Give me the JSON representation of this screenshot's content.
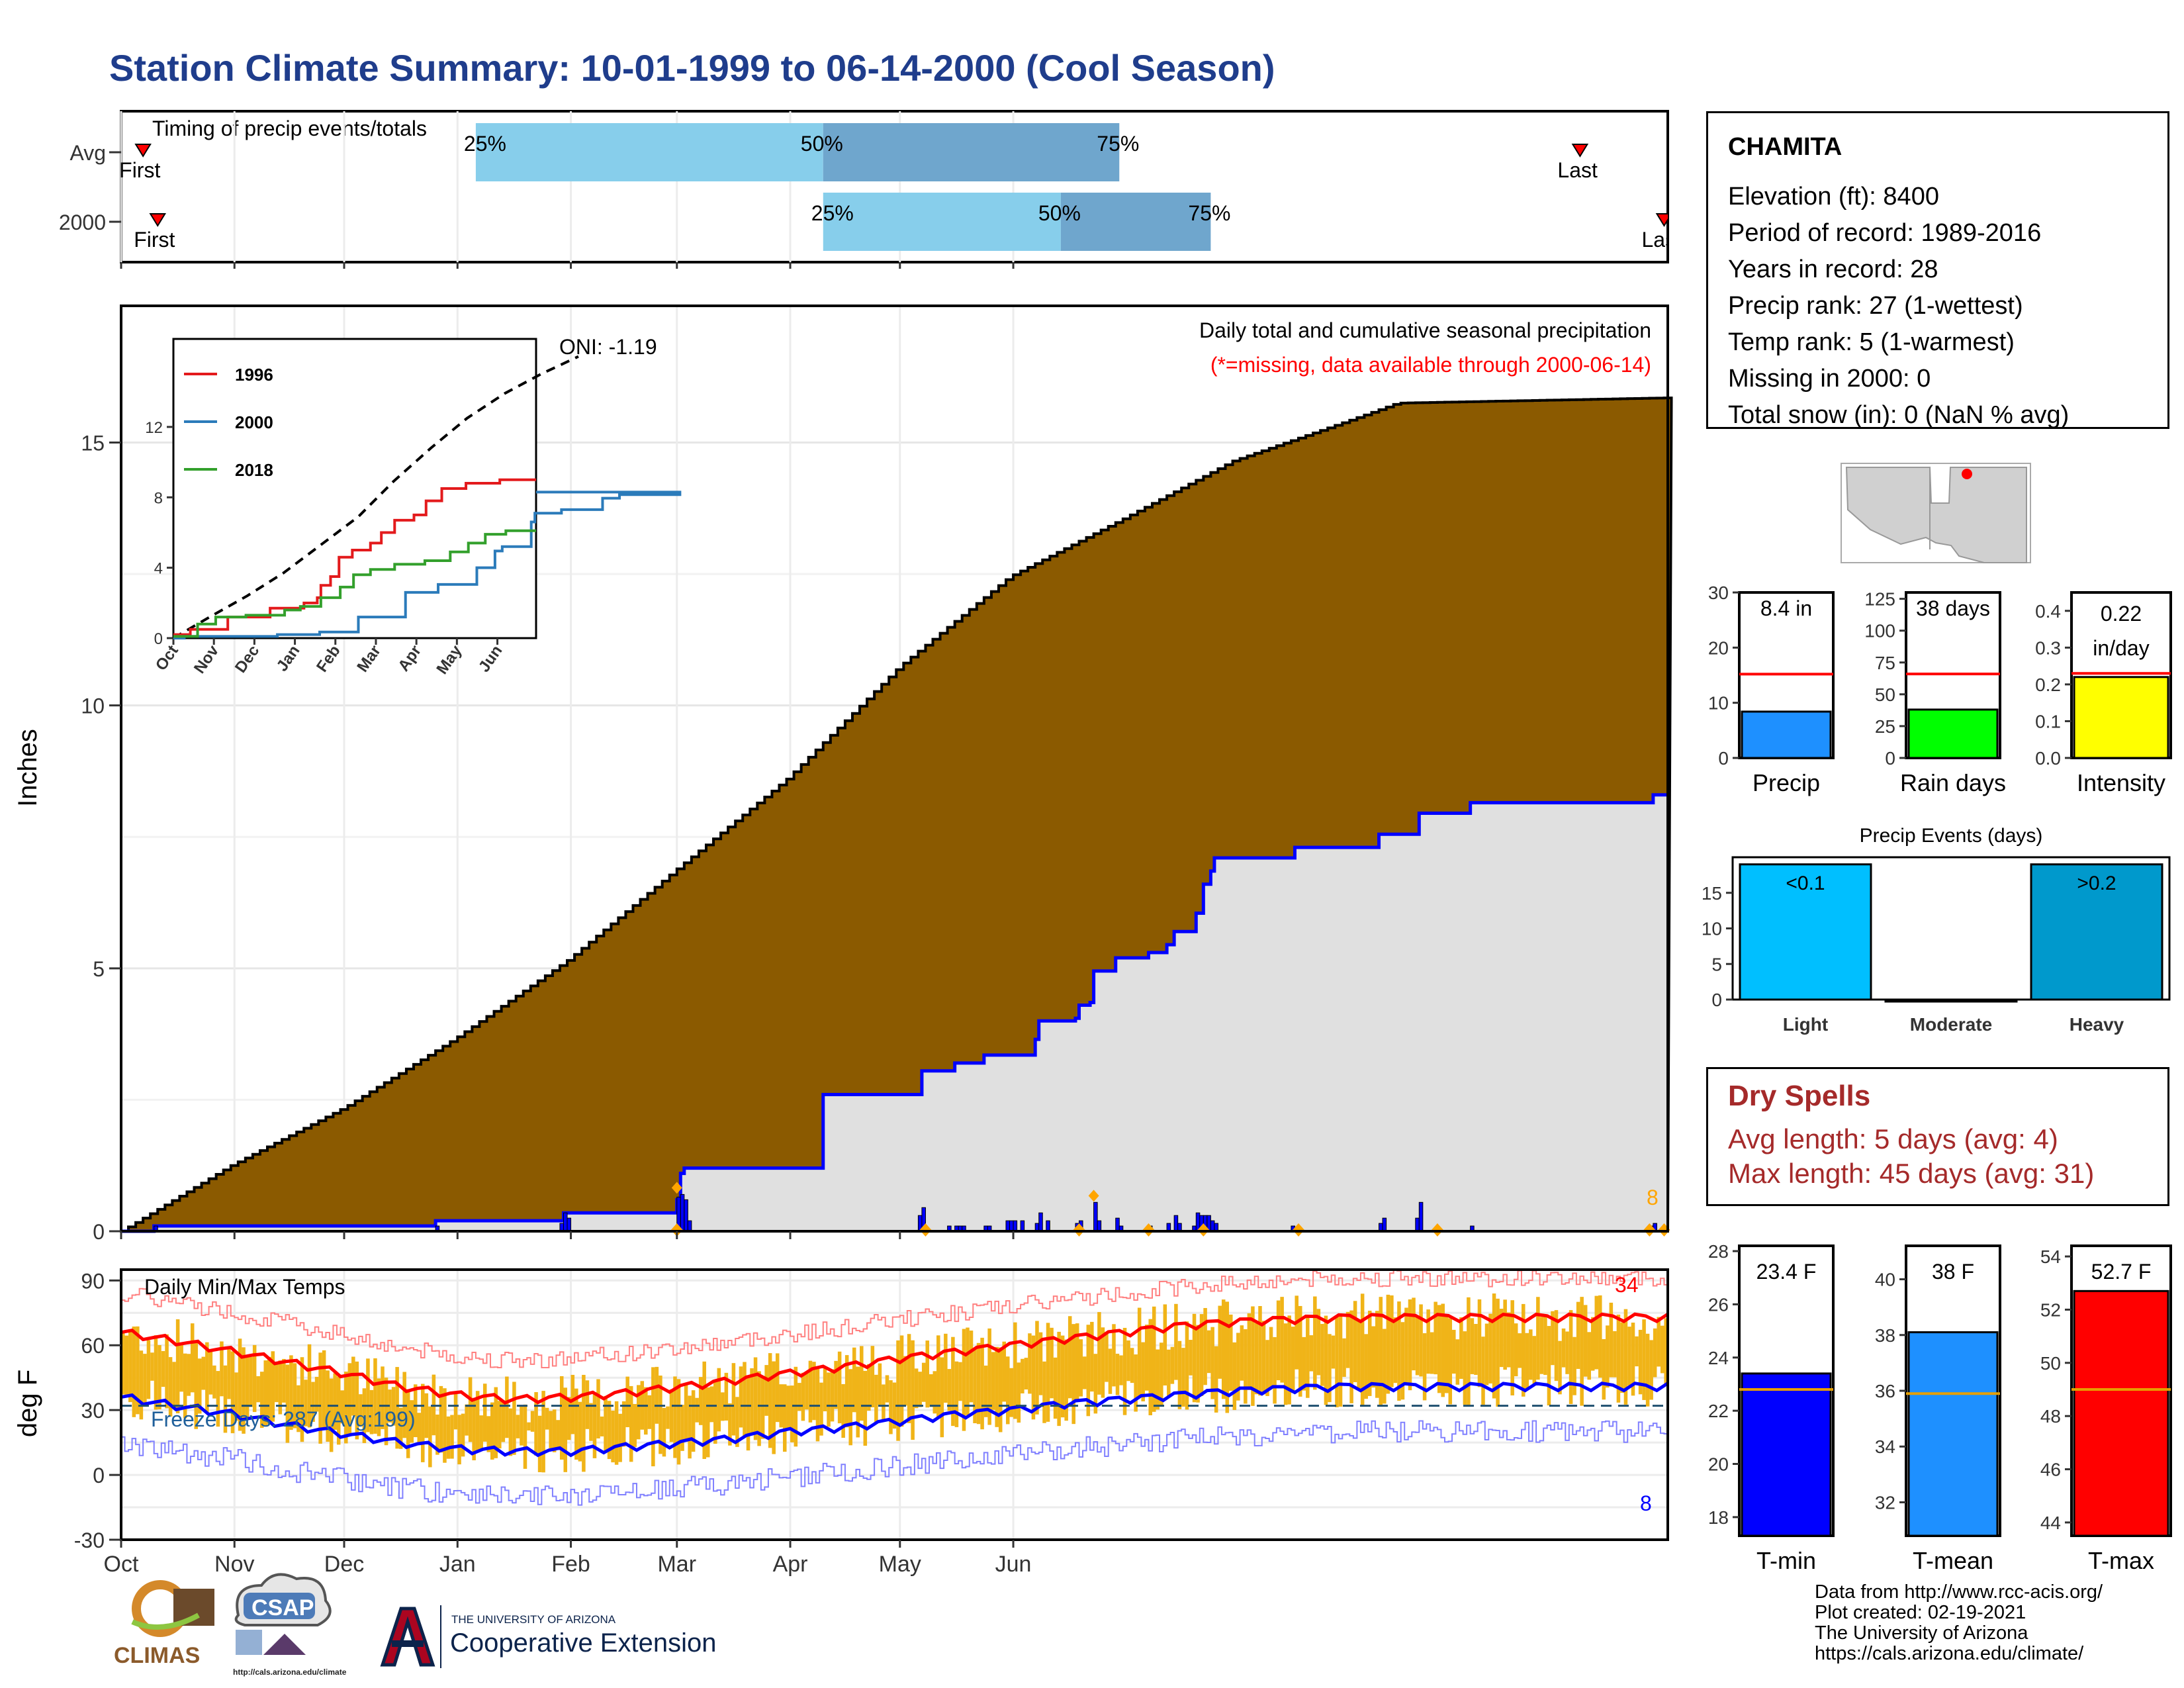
{
  "title": "Station Climate Summary: 10-01-1999 to 06-14-2000 (Cool Season)",
  "colors": {
    "title": "#1f3d8c",
    "avg_cumulative": "#8b5a00",
    "season_cumulative_fill": "#e0e0e0",
    "season_cumulative_line": "#0000ff",
    "daily_precip": "#0000ff",
    "event_marker": "#ffa500",
    "temp_bar": "#f0b418",
    "tmax_mean": "#ff0000",
    "tmin_mean": "#0000ff",
    "light_blue": "#87ceeb",
    "steel_blue": "#6fa6cd",
    "dry_spell_text": "#a52a2a"
  },
  "timing_chart": {
    "label": "Timing of precip events/totals",
    "rows": [
      {
        "name": "Avg",
        "first_label": "First",
        "last_label": "Last",
        "q25_label": "25%",
        "q50_label": "50%",
        "q75_label": "75%",
        "first_day": 6,
        "q25_day": 97,
        "q50_day": 192,
        "q75_day": 273,
        "last_day": 399
      },
      {
        "name": "2000",
        "first_label": "First",
        "last_label": "Last",
        "q25_label": "25%",
        "q50_label": "50%",
        "q75_label": "75%",
        "first_day": 10,
        "q25_day": 192,
        "q50_day": 257,
        "q75_day": 298,
        "last_day": 422
      }
    ]
  },
  "main_chart": {
    "ylabel": "Inches",
    "title": "Daily total and cumulative seasonal precipitation",
    "subtitle": "(*=missing, data available through 2000-06-14)",
    "oni_label": "ONI: -1.19",
    "end_count_label": "8",
    "ylim": [
      0,
      17.6
    ],
    "y_ticks": [
      "0",
      "5",
      "10",
      "15"
    ],
    "avg_cumulative": [
      {
        "day": 0,
        "value": 0.0
      },
      {
        "day": 30,
        "value": 1.25
      },
      {
        "day": 61,
        "value": 2.35
      },
      {
        "day": 91,
        "value": 3.65
      },
      {
        "day": 122,
        "value": 5.15
      },
      {
        "day": 153,
        "value": 6.95
      },
      {
        "day": 182,
        "value": 8.6
      },
      {
        "day": 213,
        "value": 10.75
      },
      {
        "day": 243,
        "value": 12.45
      },
      {
        "day": 274,
        "value": 13.55
      },
      {
        "day": 304,
        "value": 14.65
      },
      {
        "day": 335,
        "value": 15.4
      },
      {
        "day": 349,
        "value": 15.75
      },
      {
        "day": 423,
        "value": 15.85
      }
    ],
    "season_cumulative": [
      {
        "day": 0,
        "value": 0.0
      },
      {
        "day": 9,
        "value": 0.1
      },
      {
        "day": 85,
        "value": 0.1
      },
      {
        "day": 86,
        "value": 0.2
      },
      {
        "day": 121,
        "value": 0.35
      },
      {
        "day": 151,
        "value": 0.35
      },
      {
        "day": 152,
        "value": 0.6
      },
      {
        "day": 153,
        "value": 1.1
      },
      {
        "day": 154,
        "value": 1.2
      },
      {
        "day": 191,
        "value": 1.2
      },
      {
        "day": 192,
        "value": 2.6
      },
      {
        "day": 218,
        "value": 2.6
      },
      {
        "day": 219,
        "value": 3.05
      },
      {
        "day": 228,
        "value": 3.2
      },
      {
        "day": 236,
        "value": 3.35
      },
      {
        "day": 250,
        "value": 3.65
      },
      {
        "day": 251,
        "value": 4.0
      },
      {
        "day": 261,
        "value": 4.05
      },
      {
        "day": 262,
        "value": 4.3
      },
      {
        "day": 265,
        "value": 4.35
      },
      {
        "day": 266,
        "value": 4.95
      },
      {
        "day": 271,
        "value": 4.95
      },
      {
        "day": 272,
        "value": 5.2
      },
      {
        "day": 280,
        "value": 5.2
      },
      {
        "day": 281,
        "value": 5.3
      },
      {
        "day": 286,
        "value": 5.45
      },
      {
        "day": 288,
        "value": 5.7
      },
      {
        "day": 293,
        "value": 5.7
      },
      {
        "day": 294,
        "value": 6.05
      },
      {
        "day": 296,
        "value": 6.6
      },
      {
        "day": 298,
        "value": 6.85
      },
      {
        "day": 299,
        "value": 7.1
      },
      {
        "day": 320,
        "value": 7.1
      },
      {
        "day": 321,
        "value": 7.3
      },
      {
        "day": 343,
        "value": 7.3
      },
      {
        "day": 344,
        "value": 7.55
      },
      {
        "day": 354,
        "value": 7.55
      },
      {
        "day": 355,
        "value": 7.95
      },
      {
        "day": 368,
        "value": 7.95
      },
      {
        "day": 369,
        "value": 8.15
      },
      {
        "day": 418,
        "value": 8.15
      },
      {
        "day": 419,
        "value": 8.3
      },
      {
        "day": 423,
        "value": 8.3
      }
    ],
    "daily_precip": [
      {
        "day": 9,
        "value": 0.1
      },
      {
        "day": 86,
        "value": 0.1
      },
      {
        "day": 120,
        "value": 0.15
      },
      {
        "day": 121,
        "value": 0.35
      },
      {
        "day": 122,
        "value": 0.25
      },
      {
        "day": 152,
        "value": 0.65
      },
      {
        "day": 153,
        "value": 0.7
      },
      {
        "day": 154,
        "value": 0.6
      },
      {
        "day": 155,
        "value": 0.2
      },
      {
        "day": 218,
        "value": 0.3
      },
      {
        "day": 219,
        "value": 0.45
      },
      {
        "day": 226,
        "value": 0.1
      },
      {
        "day": 228,
        "value": 0.1
      },
      {
        "day": 229,
        "value": 0.1
      },
      {
        "day": 230,
        "value": 0.1
      },
      {
        "day": 236,
        "value": 0.1
      },
      {
        "day": 237,
        "value": 0.1
      },
      {
        "day": 242,
        "value": 0.2
      },
      {
        "day": 243,
        "value": 0.2
      },
      {
        "day": 244,
        "value": 0.2
      },
      {
        "day": 246,
        "value": 0.2
      },
      {
        "day": 250,
        "value": 0.15
      },
      {
        "day": 251,
        "value": 0.35
      },
      {
        "day": 253,
        "value": 0.2
      },
      {
        "day": 261,
        "value": 0.15
      },
      {
        "day": 262,
        "value": 0.2
      },
      {
        "day": 266,
        "value": 0.55
      },
      {
        "day": 267,
        "value": 0.2
      },
      {
        "day": 272,
        "value": 0.25
      },
      {
        "day": 273,
        "value": 0.1
      },
      {
        "day": 281,
        "value": 0.1
      },
      {
        "day": 286,
        "value": 0.15
      },
      {
        "day": 288,
        "value": 0.3
      },
      {
        "day": 289,
        "value": 0.15
      },
      {
        "day": 293,
        "value": 0.1
      },
      {
        "day": 294,
        "value": 0.35
      },
      {
        "day": 295,
        "value": 0.3
      },
      {
        "day": 296,
        "value": 0.3
      },
      {
        "day": 297,
        "value": 0.3
      },
      {
        "day": 298,
        "value": 0.2
      },
      {
        "day": 299,
        "value": 0.15
      },
      {
        "day": 320,
        "value": 0.1
      },
      {
        "day": 344,
        "value": 0.15
      },
      {
        "day": 345,
        "value": 0.25
      },
      {
        "day": 354,
        "value": 0.25
      },
      {
        "day": 355,
        "value": 0.55
      },
      {
        "day": 369,
        "value": 0.1
      },
      {
        "day": 418,
        "value": 0.1
      },
      {
        "day": 419,
        "value": 0.15
      }
    ],
    "event_markers": [
      152,
      220,
      262,
      281,
      296,
      322,
      360,
      418,
      422
    ],
    "inset": {
      "ylim": [
        0,
        16
      ],
      "y_ticks": [
        "0",
        "4",
        "8",
        "12"
      ],
      "x_ticks": [
        "Oct",
        "Nov",
        "Dec",
        "Jan",
        "Feb",
        "Mar",
        "Apr",
        "May",
        "Jun"
      ],
      "legend": [
        "1996",
        "2000",
        "2018"
      ],
      "colors": [
        "#e31a1c",
        "#2b7bba",
        "#33a02c"
      ],
      "avg_line": [
        {
          "day": 0,
          "value": 0
        },
        {
          "day": 30,
          "value": 1.2
        },
        {
          "day": 61,
          "value": 2.4
        },
        {
          "day": 91,
          "value": 3.7
        },
        {
          "day": 122,
          "value": 5.3
        },
        {
          "day": 153,
          "value": 6.9
        },
        {
          "day": 182,
          "value": 8.9
        },
        {
          "day": 213,
          "value": 10.8
        },
        {
          "day": 243,
          "value": 12.5
        },
        {
          "day": 274,
          "value": 13.9
        },
        {
          "day": 304,
          "value": 15.0
        },
        {
          "day": 335,
          "value": 16.0
        }
      ],
      "series": [
        {
          "name": "1996",
          "points": [
            {
              "day": 0,
              "value": 0.2
            },
            {
              "day": 14,
              "value": 0.5
            },
            {
              "day": 45,
              "value": 1.2
            },
            {
              "day": 80,
              "value": 1.7
            },
            {
              "day": 108,
              "value": 2.0
            },
            {
              "day": 119,
              "value": 2.3
            },
            {
              "day": 122,
              "value": 3.0
            },
            {
              "day": 130,
              "value": 3.5
            },
            {
              "day": 137,
              "value": 4.6
            },
            {
              "day": 148,
              "value": 5.0
            },
            {
              "day": 163,
              "value": 5.4
            },
            {
              "day": 172,
              "value": 6.0
            },
            {
              "day": 183,
              "value": 6.7
            },
            {
              "day": 199,
              "value": 7.0
            },
            {
              "day": 209,
              "value": 7.8
            },
            {
              "day": 222,
              "value": 8.5
            },
            {
              "day": 242,
              "value": 8.8
            },
            {
              "day": 270,
              "value": 9.0
            }
          ]
        },
        {
          "name": "2000",
          "points": [
            {
              "day": 0,
              "value": 0.0
            },
            {
              "day": 9,
              "value": 0.1
            },
            {
              "day": 86,
              "value": 0.2
            },
            {
              "day": 121,
              "value": 0.35
            },
            {
              "day": 153,
              "value": 1.2
            },
            {
              "day": 192,
              "value": 2.6
            },
            {
              "day": 219,
              "value": 3.05
            },
            {
              "day": 251,
              "value": 4.0
            },
            {
              "day": 266,
              "value": 4.95
            },
            {
              "day": 272,
              "value": 5.2
            },
            {
              "day": 296,
              "value": 6.6
            },
            {
              "day": 299,
              "value": 7.1
            },
            {
              "day": 321,
              "value": 7.3
            },
            {
              "day": 355,
              "value": 7.95
            },
            {
              "day": 369,
              "value": 8.15
            },
            {
              "day": 419,
              "value": 8.3
            }
          ]
        },
        {
          "name": "2018",
          "points": [
            {
              "day": 0,
              "value": 0.1
            },
            {
              "day": 20,
              "value": 0.8
            },
            {
              "day": 35,
              "value": 1.2
            },
            {
              "day": 60,
              "value": 1.3
            },
            {
              "day": 92,
              "value": 1.6
            },
            {
              "day": 105,
              "value": 1.8
            },
            {
              "day": 122,
              "value": 2.3
            },
            {
              "day": 138,
              "value": 2.9
            },
            {
              "day": 149,
              "value": 3.6
            },
            {
              "day": 163,
              "value": 3.9
            },
            {
              "day": 183,
              "value": 4.2
            },
            {
              "day": 208,
              "value": 4.4
            },
            {
              "day": 229,
              "value": 4.9
            },
            {
              "day": 244,
              "value": 5.4
            },
            {
              "day": 258,
              "value": 5.9
            },
            {
              "day": 275,
              "value": 6.1
            }
          ]
        }
      ]
    }
  },
  "temp_chart": {
    "ylabel": "deg F",
    "label": "Daily Min/Max Temps",
    "freeze_label": "Freeze Days: 287 (Avg:199)",
    "hot_count_label": "34",
    "cold_count_label": "8",
    "ylim": [
      -30,
      95
    ],
    "y_ticks": [
      "-30",
      "0",
      "30",
      "60",
      "90"
    ],
    "freeze_threshold": 32,
    "x_ticks": [
      "Oct",
      "Nov",
      "Dec",
      "Jan",
      "Feb",
      "Mar",
      "Apr",
      "May",
      "Jun"
    ],
    "tmax_mean": [
      {
        "day": 0,
        "value": 66
      },
      {
        "day": 15,
        "value": 62
      },
      {
        "day": 31,
        "value": 57
      },
      {
        "day": 46,
        "value": 52
      },
      {
        "day": 61,
        "value": 47
      },
      {
        "day": 76,
        "value": 41
      },
      {
        "day": 92,
        "value": 37
      },
      {
        "day": 107,
        "value": 35
      },
      {
        "day": 123,
        "value": 36
      },
      {
        "day": 138,
        "value": 38
      },
      {
        "day": 154,
        "value": 41
      },
      {
        "day": 168,
        "value": 44
      },
      {
        "day": 182,
        "value": 47
      },
      {
        "day": 197,
        "value": 50
      },
      {
        "day": 213,
        "value": 54
      },
      {
        "day": 228,
        "value": 57
      },
      {
        "day": 243,
        "value": 60
      },
      {
        "day": 258,
        "value": 63
      },
      {
        "day": 274,
        "value": 66
      },
      {
        "day": 289,
        "value": 69
      },
      {
        "day": 305,
        "value": 71
      },
      {
        "day": 319,
        "value": 72
      },
      {
        "day": 335,
        "value": 73
      }
    ],
    "tmin_mean": [
      {
        "day": 0,
        "value": 36
      },
      {
        "day": 15,
        "value": 32
      },
      {
        "day": 31,
        "value": 28
      },
      {
        "day": 46,
        "value": 23
      },
      {
        "day": 61,
        "value": 19
      },
      {
        "day": 76,
        "value": 15
      },
      {
        "day": 92,
        "value": 12
      },
      {
        "day": 107,
        "value": 11
      },
      {
        "day": 123,
        "value": 11
      },
      {
        "day": 138,
        "value": 13
      },
      {
        "day": 154,
        "value": 15
      },
      {
        "day": 168,
        "value": 17
      },
      {
        "day": 182,
        "value": 20
      },
      {
        "day": 197,
        "value": 22
      },
      {
        "day": 213,
        "value": 25
      },
      {
        "day": 228,
        "value": 28
      },
      {
        "day": 243,
        "value": 30
      },
      {
        "day": 258,
        "value": 33
      },
      {
        "day": 274,
        "value": 35
      },
      {
        "day": 289,
        "value": 37
      },
      {
        "day": 305,
        "value": 39
      },
      {
        "day": 319,
        "value": 40
      },
      {
        "day": 335,
        "value": 41
      }
    ]
  },
  "map": {
    "alt": "station location map"
  },
  "small_bars": [
    {
      "name": "Precip",
      "label": "8.4 in",
      "value": 8.4,
      "avg": 15.2,
      "ylim": [
        0,
        30
      ],
      "ticks": [
        "0",
        "10",
        "20",
        "30"
      ],
      "color": "#1e90ff"
    },
    {
      "name": "Rain days",
      "label": "38 days",
      "value": 38,
      "avg": 66,
      "ylim": [
        0,
        130
      ],
      "ticks": [
        "0",
        "25",
        "50",
        "75",
        "100",
        "125"
      ],
      "color": "#00ff00"
    },
    {
      "name": "Intensity",
      "label_line1": "0.22",
      "label_line2": "in/day",
      "value": 0.22,
      "avg": 0.23,
      "ylim": [
        0,
        0.45
      ],
      "ticks": [
        "0.0",
        "0.1",
        "0.2",
        "0.3",
        "0.4"
      ],
      "color": "#ffff00"
    }
  ],
  "events_chart": {
    "title": "Precip Events (days)",
    "categories": [
      "Light",
      "Moderate",
      "Heavy"
    ],
    "values": [
      19,
      0,
      19
    ],
    "bar_labels": [
      "<0.1",
      "",
      ">0.2"
    ],
    "colors": [
      "#00bfff",
      "#00bfff",
      "#0099cc"
    ],
    "ylim": [
      0,
      20
    ],
    "y_ticks": [
      "0",
      "5",
      "10",
      "15"
    ]
  },
  "temp_bars": [
    {
      "name": "T-min",
      "label": "23.4 F",
      "value": 23.4,
      "avg": 22.8,
      "ylim": [
        17.3,
        28.2
      ],
      "ticks": [
        "18",
        "20",
        "22",
        "24",
        "26",
        "28"
      ],
      "color": "#0000ff"
    },
    {
      "name": "T-mean",
      "label": "38 F",
      "value": 38.1,
      "avg": 35.9,
      "ylim": [
        30.8,
        41.2
      ],
      "ticks": [
        "32",
        "34",
        "36",
        "38",
        "40"
      ],
      "color": "#1e90ff"
    },
    {
      "name": "T-max",
      "label": "52.7 F",
      "value": 52.7,
      "avg": 49.0,
      "ylim": [
        43.5,
        54.4
      ],
      "ticks": [
        "44",
        "46",
        "48",
        "50",
        "52",
        "54"
      ],
      "color": "#ff0000"
    }
  ],
  "info": {
    "station": "CHAMITA",
    "lines": [
      "Elevation (ft): 8400",
      "Period of record: 1989-2016",
      "Years in record: 28",
      "Precip rank: 27 (1-wettest)",
      "Temp rank: 5 (1-warmest)",
      "Missing in 2000: 0",
      "Total snow (in): 0 (NaN % avg)"
    ]
  },
  "dry_spells": {
    "title": "Dry Spells",
    "avg_line": "Avg length: 5 days (avg: 4)",
    "max_line": "Max length: 45 days (avg: 31)"
  },
  "credits": [
    "Data from http://www.rcc-acis.org/",
    "Plot created: 02-19-2021",
    "The University of Arizona",
    "https://cals.arizona.edu/climate/"
  ],
  "logos": {
    "climas": "CLIMAS",
    "csap": "CSAP",
    "csap_url": "http://cals.arizona.edu/climate",
    "ua_line1": "THE UNIVERSITY OF ARIZONA",
    "ua_line2": "Cooperative Extension"
  }
}
